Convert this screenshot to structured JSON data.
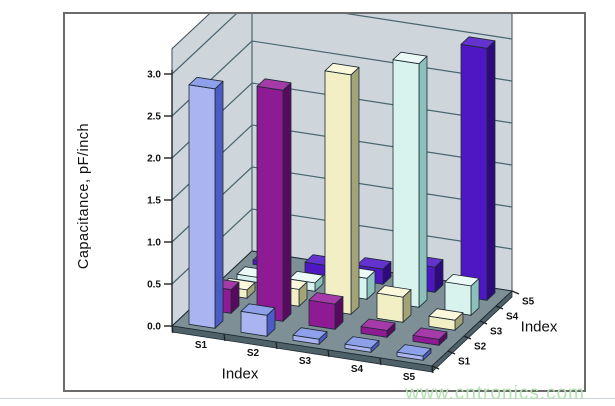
{
  "watermark": {
    "text": "www.cntronics.com",
    "color": "#b3e1b0"
  },
  "chart_data": {
    "type": "bar",
    "subtype": "3d-column-matrix",
    "title": "",
    "x_axis": {
      "label": "Index",
      "categories": [
        "S1",
        "S2",
        "S3",
        "S4",
        "S5"
      ]
    },
    "depth_axis": {
      "label": "Index",
      "categories": [
        "S1",
        "S2",
        "S3",
        "S4",
        "S5"
      ]
    },
    "value_axis": {
      "label": "Capacitance, pF/inch",
      "min": 0.0,
      "max": 3.0,
      "tick_step": 0.5,
      "tick_labels": [
        "0.0",
        "0.5",
        "1.0",
        "1.5",
        "2.0",
        "2.5",
        "3.0"
      ]
    },
    "series": [
      {
        "name": "S1",
        "front": "#aab4f0",
        "side": "#4d5cc4",
        "top": "#8ea0ea",
        "values": [
          2.85,
          0.25,
          0.06,
          0.05,
          0.05
        ]
      },
      {
        "name": "S2",
        "front": "#8e1a94",
        "side": "#570b5e",
        "top": "#a53aa8",
        "values": [
          0.28,
          2.75,
          0.3,
          0.08,
          0.07
        ]
      },
      {
        "name": "S3",
        "front": "#f3efc5",
        "side": "#a3a378",
        "top": "#fbf8dc",
        "values": [
          0.1,
          0.2,
          2.85,
          0.3,
          0.12
        ]
      },
      {
        "name": "S4",
        "front": "#d8f3ed",
        "side": "#8cc0ba",
        "top": "#ebfaf6",
        "values": [
          0.06,
          0.1,
          0.25,
          2.9,
          0.35
        ]
      },
      {
        "name": "S5",
        "front": "#4f17c4",
        "side": "#2e0a7c",
        "top": "#6433cf",
        "values": [
          0.05,
          0.12,
          0.18,
          0.3,
          3.0
        ]
      }
    ],
    "layout": {
      "grid": true,
      "legend": "none",
      "wall_color": "#ced6db",
      "grid_color": "#4a6570",
      "wall_edge_color": "#3c4e56",
      "floor_color": "#7e8f96",
      "floor_side_color": "#4e6068",
      "bar_outline_color": "#1e2a34",
      "text_color": "#101010"
    }
  }
}
